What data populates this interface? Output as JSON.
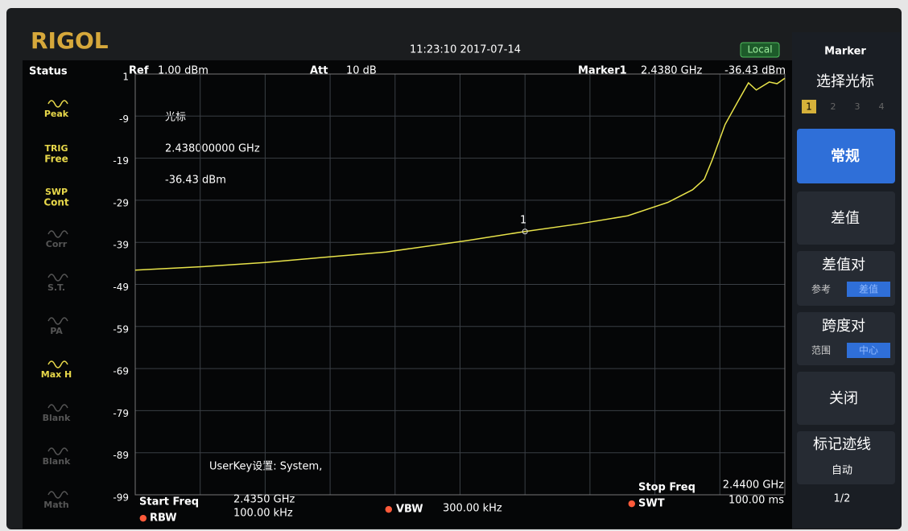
{
  "header": {
    "brand": "RIGOL",
    "datetime": "11:23:10 2017-07-14",
    "mode": "Local",
    "status_title": "Status"
  },
  "top_bar": {
    "ref_label": "Ref",
    "ref_value": "1.00 dBm",
    "att_label": "Att",
    "att_value": "10 dB",
    "marker_label": "Marker1",
    "marker_freq": "2.4380 GHz",
    "marker_level": "-36.43 dBm"
  },
  "status_items": [
    {
      "top": "Peak"
    },
    {
      "top": "TRIG",
      "bottom": "Free"
    },
    {
      "top": "SWP",
      "bottom": "Cont"
    },
    {
      "top": "Corr"
    },
    {
      "top": "S.T."
    },
    {
      "top": "PA"
    },
    {
      "top": "Max H"
    },
    {
      "top": "Blank"
    },
    {
      "top": "Blank"
    },
    {
      "top": "Math"
    }
  ],
  "marker_info": {
    "title": "光标",
    "freq": "2.438000000 GHz",
    "level": "-36.43 dBm"
  },
  "userkey": "UserKey设置:  System,",
  "menu": {
    "title": "Marker",
    "select": "选择光标",
    "marker_numbers": [
      "1",
      "2",
      "3",
      "4"
    ],
    "normal": "常规",
    "delta": "差值",
    "delta_pair": "差值对",
    "delta_pair_options": [
      "参考",
      "差值"
    ],
    "span_pair": "跨度对",
    "span_pair_options": [
      "范围",
      "中心"
    ],
    "off": "关闭",
    "trace": "标记迹线",
    "trace_option": "自动",
    "page": "1/2"
  },
  "footer": {
    "start_label": "Start Freq",
    "stop_label": "Stop Freq",
    "rbw_label": "RBW",
    "rbw": "100.00 kHz",
    "vbw_label": "VBW",
    "vbw": "300.00 kHz",
    "swt_label": "SWT",
    "swt": "100.00 ms"
  },
  "chart_data": {
    "type": "line",
    "color": "#e8e34a",
    "grid": true,
    "xlim": [
      2.435,
      2.44
    ],
    "xticks": [
      {
        "value": 2.435,
        "label": "2.4350 GHz"
      },
      {
        "value": 2.44,
        "label": "2.4400 GHz"
      }
    ],
    "ylim": [
      -99,
      1
    ],
    "yticks": [
      1,
      -9,
      -19,
      -29,
      -39,
      -49,
      -59,
      -69,
      -79,
      -89,
      -99
    ],
    "x": [
      2.435,
      2.43551,
      2.436,
      2.43644,
      2.43693,
      2.43755,
      2.438,
      2.43842,
      2.43879,
      2.4391,
      2.43929,
      2.43938,
      2.43944,
      2.43954,
      2.43963,
      2.43972,
      2.43978,
      2.43988,
      2.43994,
      2.44
    ],
    "series": [
      {
        "values": [
          -45.6,
          -44.8,
          -43.8,
          -42.6,
          -41.3,
          -38.6,
          -36.43,
          -34.6,
          -32.7,
          -29.5,
          -26.5,
          -24,
          -19.5,
          -11,
          -6,
          -1.1,
          -2.8,
          -0.9,
          -1.3,
          0
        ]
      }
    ],
    "marker": {
      "label": "1",
      "x": 2.438,
      "y": -36.43
    }
  }
}
